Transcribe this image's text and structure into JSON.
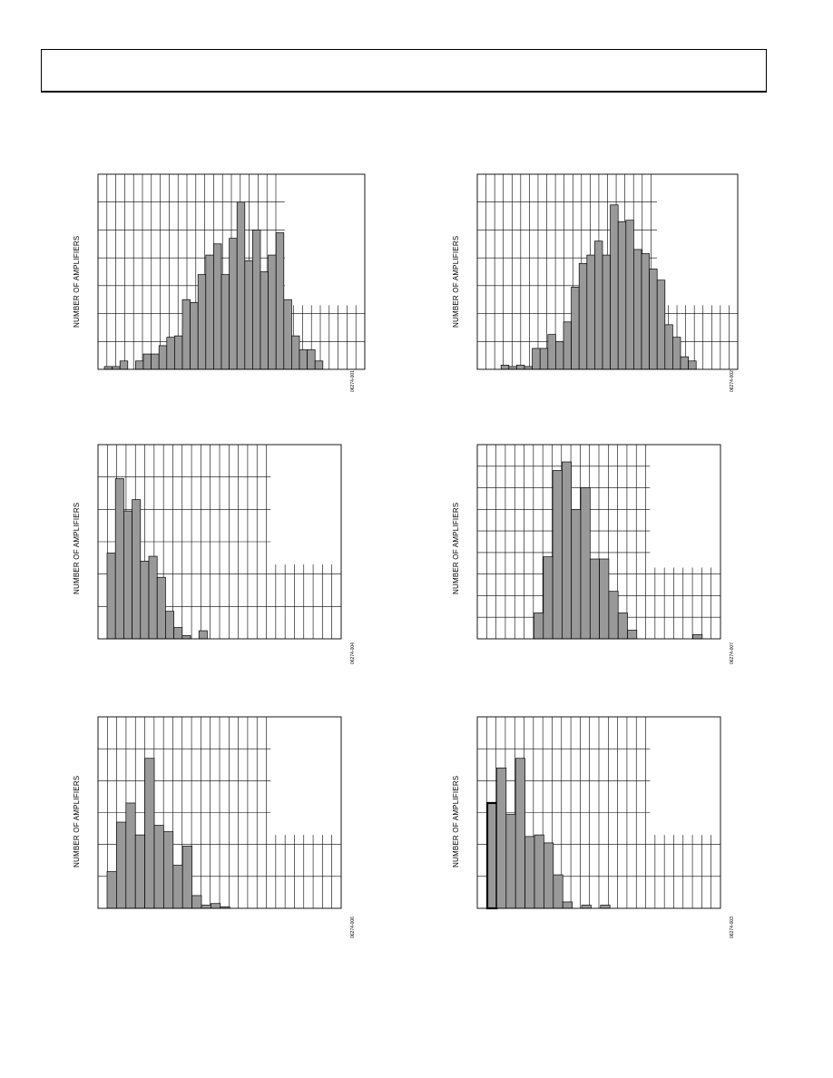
{
  "page": {
    "header": ""
  },
  "chart_data": [
    {
      "type": "bar",
      "ylabel": "NUMBER OF AMPLIFIERS",
      "figure_code": "06274-001",
      "values": [
        0.1,
        0.1,
        0.3,
        0,
        0.3,
        0.55,
        0.55,
        0.85,
        1.15,
        1.2,
        2.5,
        2.4,
        3.4,
        4.1,
        4.5,
        3.4,
        4.7,
        6.0,
        3.9,
        5.0,
        3.5,
        4.1,
        4.9,
        2.5,
        1.2,
        0.7,
        0.7,
        0.3
      ]
    },
    {
      "type": "bar",
      "ylabel": "NUMBER OF AMPLIFIERS",
      "figure_code": "06274-002",
      "values": [
        0,
        0,
        0.15,
        0.1,
        0.15,
        0.1,
        0.75,
        0.75,
        1.25,
        1.0,
        1.7,
        2.95,
        3.8,
        4.1,
        4.6,
        4.1,
        5.9,
        5.3,
        5.35,
        4.3,
        4.15,
        3.6,
        3.2,
        1.6,
        1.15,
        0.45,
        0.3
      ]
    },
    {
      "type": "bar",
      "ylabel": "NUMBER OF AMPLIFIERS",
      "figure_code": "06274-004",
      "values": [
        2.65,
        4.95,
        3.95,
        4.3,
        2.4,
        2.55,
        1.9,
        0.85,
        0.35,
        0.1,
        0,
        0.25
      ]
    },
    {
      "type": "bar",
      "ylabel": "NUMBER OF AMPLIFIERS",
      "figure_code": "06274-007",
      "values": [
        0,
        0,
        0,
        0,
        0,
        1.2,
        3.8,
        7.8,
        8.2,
        6.0,
        7.0,
        3.7,
        3.7,
        2.2,
        1.2,
        0.4,
        0,
        0,
        0,
        0,
        0,
        0,
        0.2
      ]
    },
    {
      "type": "bar",
      "ylabel": "NUMBER OF AMPLIFIERS",
      "figure_code": "06274-006",
      "values": [
        1.15,
        2.7,
        3.3,
        2.3,
        4.7,
        2.6,
        2.4,
        1.35,
        1.95,
        0.4,
        0.1,
        0.15,
        0.05
      ]
    },
    {
      "type": "bar",
      "ylabel": "NUMBER OF AMPLIFIERS",
      "figure_code": "06274-003",
      "values": [
        3.3,
        4.4,
        2.95,
        4.7,
        2.25,
        2.3,
        2.05,
        1.05,
        0.2,
        0,
        0.1,
        0,
        0.1
      ]
    }
  ]
}
